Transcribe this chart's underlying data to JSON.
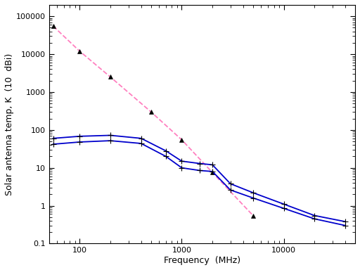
{
  "xlabel": "Frequency  (MHz)",
  "ylabel": "Solar antenna temp, K  (10  dBi)",
  "xlim": [
    50,
    50000
  ],
  "ylim": [
    0.1,
    200000
  ],
  "background_color": "#ffffff",
  "pink_dashed_freq": [
    55,
    100,
    200,
    500,
    1000,
    2000,
    5000
  ],
  "pink_dashed_temp": [
    55000,
    12000,
    2500,
    300,
    55,
    7.5,
    0.55
  ],
  "blue_upper_freq": [
    55,
    100,
    200,
    400,
    700,
    1000,
    1500,
    2000,
    3000,
    5000,
    10000,
    20000,
    40000
  ],
  "blue_upper_temp": [
    60,
    68,
    72,
    60,
    28,
    15,
    13,
    12,
    3.8,
    2.2,
    1.1,
    0.55,
    0.38
  ],
  "blue_lower_freq": [
    55,
    100,
    200,
    400,
    700,
    1000,
    1500,
    2000,
    3000,
    5000,
    10000,
    20000,
    40000
  ],
  "blue_lower_temp": [
    42,
    48,
    52,
    44,
    20,
    10,
    8.5,
    8.0,
    2.6,
    1.6,
    0.85,
    0.45,
    0.3
  ],
  "line_color_blue": "#0000cc",
  "line_color_pink": "#ff80c0",
  "marker_color": "#000000",
  "marker_size_pink": 4,
  "marker_size_blue": 4,
  "line_width": 1.3
}
